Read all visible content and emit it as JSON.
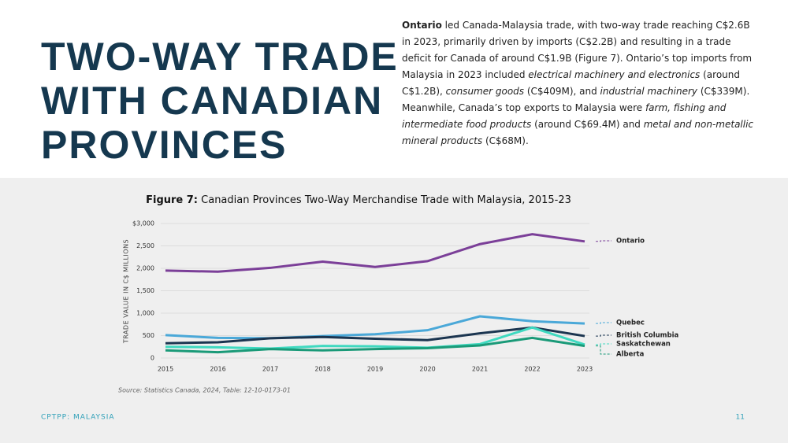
{
  "header": {
    "title_lines": [
      "TWO-WAY TRADE",
      "WITH CANADIAN",
      "PROVINCES"
    ],
    "paragraph": [
      {
        "text": "Ontario",
        "style": "bold"
      },
      {
        "text": " led Canada-Malaysia trade, with two-way trade reaching C$2.6B in 2023, primarily driven by imports (C$2.2B) and resulting in a trade deficit for Canada of around C$1.9B (Figure 7). Ontario’s top imports from Malaysia in 2023 included ",
        "style": "normal"
      },
      {
        "text": "electrical machinery and electronics",
        "style": "italic"
      },
      {
        "text": " (around C$1.2B), ",
        "style": "normal"
      },
      {
        "text": "consumer goods",
        "style": "italic"
      },
      {
        "text": " (C$409M), and ",
        "style": "normal"
      },
      {
        "text": "industrial machinery",
        "style": "italic"
      },
      {
        "text": " (C$339M). Meanwhile, Canada’s top exports to Malaysia were ",
        "style": "normal"
      },
      {
        "text": "farm, fishing and intermediate food products",
        "style": "italic"
      },
      {
        "text": " (around C$69.4M) and ",
        "style": "normal"
      },
      {
        "text": "metal and non-metallic mineral products",
        "style": "italic"
      },
      {
        "text": " (C$68M).",
        "style": "normal"
      }
    ]
  },
  "chart_data": {
    "type": "line",
    "figure_label": "Figure 7:",
    "title": "Canadian Provinces Two-Way Merchandise Trade with Malaysia, 2015-23",
    "y_label": "TRADE VALUE IN C$ MILLIONS",
    "categories": [
      "2015",
      "2016",
      "2017",
      "2018",
      "2019",
      "2020",
      "2021",
      "2022",
      "2023"
    ],
    "series": [
      {
        "name": "Ontario",
        "color": "#7b3f98",
        "values": [
          1950,
          1925,
          2010,
          2150,
          2030,
          2160,
          2540,
          2760,
          2600
        ]
      },
      {
        "name": "Quebec",
        "color": "#4aa8d8",
        "values": [
          510,
          450,
          440,
          490,
          530,
          620,
          930,
          820,
          770
        ]
      },
      {
        "name": "British Columbia",
        "color": "#1b3550",
        "values": [
          330,
          350,
          440,
          470,
          430,
          400,
          550,
          680,
          490
        ]
      },
      {
        "name": "Saskatchewan",
        "color": "#3fd9c0",
        "values": [
          250,
          240,
          210,
          270,
          260,
          230,
          310,
          680,
          300
        ]
      },
      {
        "name": "Alberta",
        "color": "#1a9a78",
        "values": [
          170,
          130,
          200,
          170,
          200,
          220,
          280,
          450,
          270
        ]
      }
    ],
    "ylim": [
      0,
      3000
    ],
    "yticks": [
      0,
      500,
      {
        "value": 1000,
        "label": "1,000"
      },
      {
        "value": 1500,
        "label": "1,500"
      },
      {
        "value": 2000,
        "label": "2,000"
      },
      {
        "value": 2500,
        "label": "2,500"
      },
      {
        "value": 3000,
        "label": "$3,000"
      }
    ],
    "grid": true,
    "source": "Source: Statistics Canada, 2024, Table: 12-10-0173-01"
  },
  "footer": {
    "left": "CPTPP: MALAYSIA",
    "page": "11"
  }
}
